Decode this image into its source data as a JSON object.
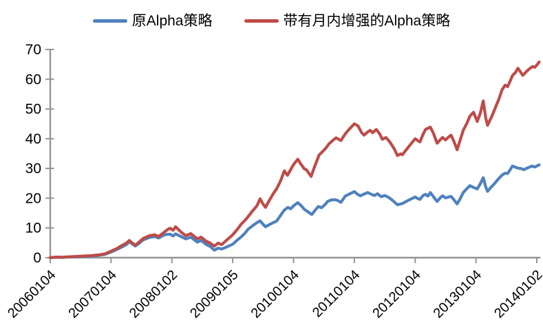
{
  "chart_data": {
    "type": "line",
    "title": "",
    "grid": "off",
    "legend_position": "top-center",
    "background_color": "#ffffff",
    "axis_color": "#949494",
    "label_color": "#000000",
    "ylim": [
      0,
      70
    ],
    "y_ticks": [
      0,
      10,
      20,
      30,
      40,
      50,
      60,
      70
    ],
    "x_tick_labels": [
      "20060104",
      "20070104",
      "20080102",
      "20090105",
      "20100104",
      "20110104",
      "20120104",
      "20130104",
      "20140102"
    ],
    "x_axis_note": "x values are in years since 20060104; one tick per year",
    "xlim_years": [
      0,
      8.06
    ],
    "series": [
      {
        "key": "original-alpha",
        "name": "原Alpha策略",
        "color": "#4F81BD",
        "points": [
          [
            0,
            0
          ],
          [
            0.1,
            0.15
          ],
          [
            0.2,
            0.1
          ],
          [
            0.3,
            0.25
          ],
          [
            0.4,
            0.3
          ],
          [
            0.5,
            0.4
          ],
          [
            0.6,
            0.5
          ],
          [
            0.7,
            0.6
          ],
          [
            0.8,
            0.8
          ],
          [
            0.9,
            1.1
          ],
          [
            1.0,
            1.9
          ],
          [
            1.1,
            2.8
          ],
          [
            1.16,
            3.4
          ],
          [
            1.25,
            4.4
          ],
          [
            1.3,
            5.4
          ],
          [
            1.35,
            4.6
          ],
          [
            1.4,
            3.9
          ],
          [
            1.47,
            5.0
          ],
          [
            1.53,
            6.0
          ],
          [
            1.63,
            6.8
          ],
          [
            1.72,
            7.1
          ],
          [
            1.78,
            6.6
          ],
          [
            1.87,
            7.6
          ],
          [
            1.92,
            7.8
          ],
          [
            1.97,
            7.9
          ],
          [
            2.02,
            7.3
          ],
          [
            2.06,
            8.0
          ],
          [
            2.15,
            7.1
          ],
          [
            2.23,
            6.3
          ],
          [
            2.31,
            6.9
          ],
          [
            2.42,
            5.2
          ],
          [
            2.48,
            5.8
          ],
          [
            2.56,
            4.5
          ],
          [
            2.63,
            3.8
          ],
          [
            2.7,
            2.5
          ],
          [
            2.76,
            3.2
          ],
          [
            2.82,
            2.9
          ],
          [
            2.9,
            3.6
          ],
          [
            3.0,
            4.5
          ],
          [
            3.08,
            6.0
          ],
          [
            3.14,
            7.0
          ],
          [
            3.2,
            8.2
          ],
          [
            3.25,
            9.5
          ],
          [
            3.33,
            10.8
          ],
          [
            3.4,
            11.8
          ],
          [
            3.45,
            12.4
          ],
          [
            3.5,
            11.2
          ],
          [
            3.54,
            10.4
          ],
          [
            3.6,
            11.1
          ],
          [
            3.67,
            11.8
          ],
          [
            3.72,
            12.3
          ],
          [
            3.78,
            14.0
          ],
          [
            3.82,
            15.2
          ],
          [
            3.85,
            16.0
          ],
          [
            3.91,
            16.9
          ],
          [
            3.95,
            16.4
          ],
          [
            4.0,
            17.4
          ],
          [
            4.07,
            18.5
          ],
          [
            4.12,
            17.6
          ],
          [
            4.18,
            16.2
          ],
          [
            4.21,
            15.8
          ],
          [
            4.3,
            14.5
          ],
          [
            4.37,
            16.3
          ],
          [
            4.41,
            17.2
          ],
          [
            4.46,
            16.8
          ],
          [
            4.52,
            17.9
          ],
          [
            4.56,
            18.9
          ],
          [
            4.62,
            19.4
          ],
          [
            4.68,
            19.5
          ],
          [
            4.73,
            19.2
          ],
          [
            4.78,
            18.6
          ],
          [
            4.85,
            20.7
          ],
          [
            4.93,
            21.5
          ],
          [
            5.0,
            22.2
          ],
          [
            5.06,
            21.2
          ],
          [
            5.1,
            20.8
          ],
          [
            5.16,
            21.4
          ],
          [
            5.22,
            21.9
          ],
          [
            5.28,
            21.3
          ],
          [
            5.33,
            20.9
          ],
          [
            5.38,
            21.5
          ],
          [
            5.44,
            20.5
          ],
          [
            5.5,
            20.9
          ],
          [
            5.56,
            20.3
          ],
          [
            5.62,
            19.4
          ],
          [
            5.68,
            18.3
          ],
          [
            5.71,
            17.8
          ],
          [
            5.79,
            18.2
          ],
          [
            5.88,
            19.2
          ],
          [
            6.0,
            20.4
          ],
          [
            6.04,
            19.9
          ],
          [
            6.08,
            19.6
          ],
          [
            6.13,
            20.9
          ],
          [
            6.17,
            21.3
          ],
          [
            6.21,
            20.7
          ],
          [
            6.25,
            21.9
          ],
          [
            6.3,
            20.5
          ],
          [
            6.36,
            18.9
          ],
          [
            6.42,
            20.3
          ],
          [
            6.45,
            20.8
          ],
          [
            6.5,
            20.1
          ],
          [
            6.55,
            20.4
          ],
          [
            6.59,
            20.6
          ],
          [
            6.64,
            19.4
          ],
          [
            6.69,
            18.1
          ],
          [
            6.74,
            19.8
          ],
          [
            6.79,
            21.9
          ],
          [
            6.85,
            23.2
          ],
          [
            6.9,
            24.2
          ],
          [
            6.96,
            23.6
          ],
          [
            7.02,
            23.1
          ],
          [
            7.07,
            24.8
          ],
          [
            7.12,
            26.9
          ],
          [
            7.16,
            23.8
          ],
          [
            7.19,
            22.3
          ],
          [
            7.24,
            23.5
          ],
          [
            7.3,
            24.8
          ],
          [
            7.37,
            26.5
          ],
          [
            7.43,
            27.8
          ],
          [
            7.48,
            28.4
          ],
          [
            7.52,
            28.3
          ],
          [
            7.56,
            29.5
          ],
          [
            7.6,
            30.8
          ],
          [
            7.65,
            30.4
          ],
          [
            7.69,
            30.1
          ],
          [
            7.73,
            30.0
          ],
          [
            7.79,
            29.6
          ],
          [
            7.85,
            30.2
          ],
          [
            7.92,
            30.8
          ],
          [
            7.97,
            30.5
          ],
          [
            8.04,
            31.2
          ]
        ]
      },
      {
        "key": "enhanced-alpha",
        "name": "带有月内增强的Alpha策略",
        "color": "#BE4B48",
        "points": [
          [
            0,
            0
          ],
          [
            0.1,
            0.2
          ],
          [
            0.2,
            0.15
          ],
          [
            0.3,
            0.3
          ],
          [
            0.4,
            0.4
          ],
          [
            0.5,
            0.5
          ],
          [
            0.6,
            0.6
          ],
          [
            0.7,
            0.75
          ],
          [
            0.8,
            0.95
          ],
          [
            0.9,
            1.3
          ],
          [
            1.0,
            2.2
          ],
          [
            1.1,
            3.1
          ],
          [
            1.16,
            3.9
          ],
          [
            1.25,
            4.9
          ],
          [
            1.3,
            5.8
          ],
          [
            1.35,
            4.9
          ],
          [
            1.4,
            4.2
          ],
          [
            1.47,
            5.4
          ],
          [
            1.53,
            6.5
          ],
          [
            1.63,
            7.4
          ],
          [
            1.72,
            7.7
          ],
          [
            1.78,
            7.1
          ],
          [
            1.87,
            8.5
          ],
          [
            1.92,
            9.3
          ],
          [
            1.97,
            9.9
          ],
          [
            2.02,
            9.2
          ],
          [
            2.06,
            10.4
          ],
          [
            2.15,
            8.6
          ],
          [
            2.23,
            7.4
          ],
          [
            2.31,
            8.1
          ],
          [
            2.42,
            6.3
          ],
          [
            2.48,
            6.9
          ],
          [
            2.56,
            5.6
          ],
          [
            2.63,
            4.9
          ],
          [
            2.7,
            3.9
          ],
          [
            2.76,
            4.9
          ],
          [
            2.82,
            4.4
          ],
          [
            2.9,
            5.9
          ],
          [
            3.0,
            7.7
          ],
          [
            3.08,
            9.6
          ],
          [
            3.14,
            11.3
          ],
          [
            3.2,
            12.5
          ],
          [
            3.25,
            13.7
          ],
          [
            3.33,
            15.8
          ],
          [
            3.4,
            17.5
          ],
          [
            3.45,
            19.8
          ],
          [
            3.5,
            18.0
          ],
          [
            3.54,
            16.9
          ],
          [
            3.6,
            19.2
          ],
          [
            3.67,
            21.6
          ],
          [
            3.72,
            23.1
          ],
          [
            3.78,
            25.5
          ],
          [
            3.82,
            27.6
          ],
          [
            3.85,
            29.2
          ],
          [
            3.9,
            27.7
          ],
          [
            3.95,
            29.5
          ],
          [
            4.0,
            31.3
          ],
          [
            4.07,
            33.1
          ],
          [
            4.12,
            31.5
          ],
          [
            4.18,
            29.8
          ],
          [
            4.21,
            29.6
          ],
          [
            4.29,
            27.3
          ],
          [
            4.35,
            30.8
          ],
          [
            4.42,
            34.5
          ],
          [
            4.47,
            35.5
          ],
          [
            4.53,
            36.8
          ],
          [
            4.58,
            38.2
          ],
          [
            4.65,
            39.5
          ],
          [
            4.7,
            40.3
          ],
          [
            4.74,
            39.8
          ],
          [
            4.78,
            39.4
          ],
          [
            4.85,
            41.6
          ],
          [
            4.92,
            43.3
          ],
          [
            5.0,
            45.0
          ],
          [
            5.06,
            44.3
          ],
          [
            5.12,
            42.0
          ],
          [
            5.16,
            41.2
          ],
          [
            5.22,
            42.3
          ],
          [
            5.26,
            42.8
          ],
          [
            5.3,
            42.0
          ],
          [
            5.36,
            43.1
          ],
          [
            5.42,
            41.5
          ],
          [
            5.46,
            39.8
          ],
          [
            5.52,
            40.4
          ],
          [
            5.58,
            39.0
          ],
          [
            5.65,
            36.8
          ],
          [
            5.71,
            34.3
          ],
          [
            5.76,
            34.9
          ],
          [
            5.79,
            34.6
          ],
          [
            5.85,
            36.2
          ],
          [
            5.92,
            38.0
          ],
          [
            6.0,
            40.0
          ],
          [
            6.04,
            39.4
          ],
          [
            6.08,
            38.9
          ],
          [
            6.13,
            41.5
          ],
          [
            6.17,
            43.1
          ],
          [
            6.21,
            43.5
          ],
          [
            6.25,
            43.9
          ],
          [
            6.3,
            41.8
          ],
          [
            6.36,
            38.5
          ],
          [
            6.42,
            39.8
          ],
          [
            6.45,
            40.4
          ],
          [
            6.5,
            39.6
          ],
          [
            6.55,
            40.6
          ],
          [
            6.59,
            41.2
          ],
          [
            6.64,
            39.0
          ],
          [
            6.69,
            36.3
          ],
          [
            6.74,
            39.5
          ],
          [
            6.79,
            42.8
          ],
          [
            6.85,
            45.2
          ],
          [
            6.9,
            47.6
          ],
          [
            6.96,
            48.9
          ],
          [
            7.02,
            45.8
          ],
          [
            7.07,
            48.5
          ],
          [
            7.12,
            52.7
          ],
          [
            7.16,
            47.0
          ],
          [
            7.19,
            44.5
          ],
          [
            7.26,
            47.5
          ],
          [
            7.32,
            50.5
          ],
          [
            7.38,
            53.5
          ],
          [
            7.43,
            56.5
          ],
          [
            7.48,
            58.0
          ],
          [
            7.52,
            57.5
          ],
          [
            7.56,
            59.3
          ],
          [
            7.6,
            61.2
          ],
          [
            7.65,
            62.3
          ],
          [
            7.69,
            63.7
          ],
          [
            7.73,
            62.5
          ],
          [
            7.77,
            61.3
          ],
          [
            7.83,
            62.6
          ],
          [
            7.88,
            63.5
          ],
          [
            7.93,
            64.3
          ],
          [
            7.97,
            64.0
          ],
          [
            8.04,
            65.8
          ]
        ]
      }
    ]
  }
}
